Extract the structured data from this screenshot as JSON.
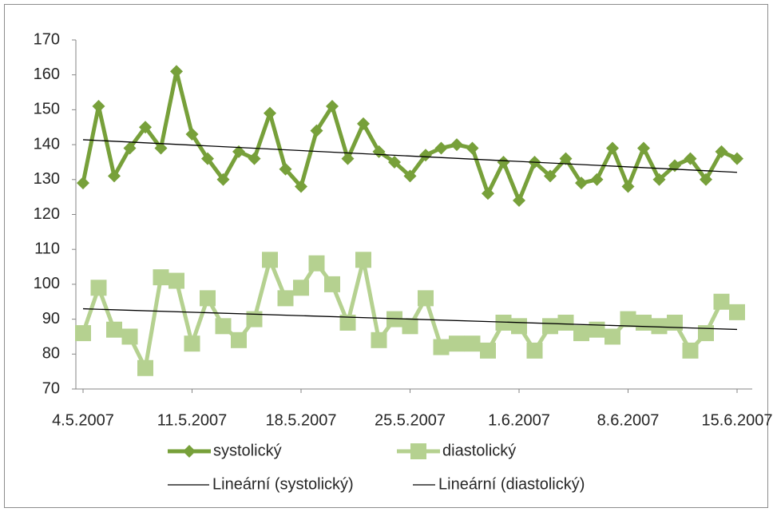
{
  "chart_data": {
    "type": "line",
    "categories": [
      "4.5.2007",
      null,
      null,
      null,
      null,
      null,
      null,
      "11.5.2007",
      null,
      null,
      null,
      null,
      null,
      null,
      "18.5.2007",
      null,
      null,
      null,
      null,
      null,
      null,
      "25.5.2007",
      null,
      null,
      null,
      null,
      null,
      null,
      "1.6.2007",
      null,
      null,
      null,
      null,
      null,
      null,
      "8.6.2007",
      null,
      null,
      null,
      null,
      null,
      null,
      "15.6.2007"
    ],
    "series": [
      {
        "name": "systolický",
        "color": "#77a03a",
        "marker": "diamond",
        "values": [
          129,
          151,
          131,
          139,
          145,
          139,
          161,
          143,
          136,
          130,
          138,
          136,
          149,
          133,
          128,
          144,
          151,
          136,
          146,
          138,
          135,
          131,
          137,
          139,
          140,
          139,
          126,
          135,
          124,
          135,
          131,
          136,
          129,
          130,
          139,
          128,
          139,
          130,
          134,
          136,
          130,
          138,
          136
        ],
        "trendline": {
          "type": "linear",
          "name": "Lineární (systolický)",
          "color": "#000000"
        }
      },
      {
        "name": "diastolický",
        "color": "#b5d190",
        "marker": "square",
        "values": [
          86,
          99,
          87,
          85,
          76,
          102,
          101,
          83,
          96,
          88,
          84,
          90,
          107,
          96,
          99,
          106,
          100,
          89,
          107,
          84,
          90,
          88,
          96,
          82,
          83,
          83,
          81,
          89,
          88,
          81,
          88,
          89,
          86,
          87,
          85,
          90,
          89,
          88,
          89,
          81,
          86,
          95,
          92
        ],
        "trendline": {
          "type": "linear",
          "name": "Lineární (diastolický)",
          "color": "#000000"
        }
      }
    ],
    "ylim": [
      70,
      170
    ],
    "yticks": [
      70,
      80,
      90,
      100,
      110,
      120,
      130,
      140,
      150,
      160,
      170
    ],
    "grid": false,
    "legend": "bottom"
  }
}
